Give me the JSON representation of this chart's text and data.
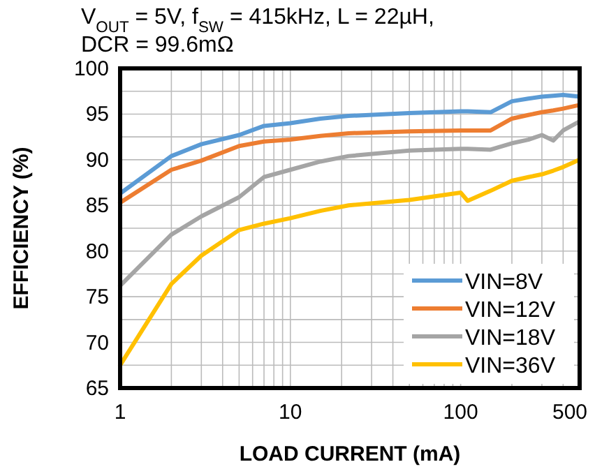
{
  "chart_data": {
    "type": "line",
    "title": "V$_{OUT}$ = 5V, f$_{SW}$ = 415kHz, L = 22µH, DCR = 99.6mΩ",
    "xlabel": "LOAD CURRENT (mA)",
    "ylabel": "EFFICIENCY (%)",
    "log": "x",
    "grid": true,
    "legend": "bottom right",
    "marker": "none",
    "line_style": "solid",
    "xlim": [
      1,
      500
    ],
    "ylim": [
      65,
      100
    ],
    "xticks": [
      1,
      {
        "value": 2,
        "label": null
      },
      {
        "value": 3,
        "label": null
      },
      {
        "value": 4,
        "label": null
      },
      {
        "value": 5,
        "label": null
      },
      {
        "value": 6,
        "label": null
      },
      {
        "value": 7,
        "label": null
      },
      {
        "value": 8,
        "label": null
      },
      {
        "value": 9,
        "label": null
      },
      10,
      {
        "value": 20,
        "label": null
      },
      {
        "value": 30,
        "label": null
      },
      {
        "value": 40,
        "label": null
      },
      {
        "value": 50,
        "label": null
      },
      {
        "value": 60,
        "label": null
      },
      {
        "value": 70,
        "label": null
      },
      {
        "value": 80,
        "label": null
      },
      {
        "value": 90,
        "label": null
      },
      100,
      {
        "value": 200,
        "label": null
      },
      {
        "value": 300,
        "label": null
      },
      {
        "value": 400,
        "label": null
      },
      500
    ],
    "yticks": [
      65,
      {
        "value": 67.5,
        "label": null
      },
      70,
      {
        "value": 72.5,
        "label": null
      },
      75,
      {
        "value": 77.5,
        "label": null
      },
      80,
      {
        "value": 82.5,
        "label": null
      },
      85,
      {
        "value": 87.5,
        "label": null
      },
      90,
      {
        "value": 92.5,
        "label": null
      },
      95,
      {
        "value": 97.5,
        "label": null
      },
      100
    ],
    "x": [
      1,
      2,
      3,
      5,
      7,
      10,
      15,
      22,
      50,
      100,
      110,
      150,
      200,
      250,
      300,
      350,
      400,
      500
    ],
    "series": [
      {
        "name": "VIN=8V",
        "color": "#5b9bd5",
        "values": [
          86.3,
          90.4,
          91.7,
          92.7,
          93.7,
          94.0,
          94.5,
          94.8,
          95.1,
          95.3,
          95.3,
          95.2,
          96.4,
          96.7,
          96.9,
          97.0,
          97.1,
          96.9
        ]
      },
      {
        "name": "VIN=12V",
        "color": "#ed7d31",
        "values": [
          85.3,
          88.9,
          89.9,
          91.5,
          92.0,
          92.2,
          92.6,
          92.9,
          93.1,
          93.2,
          93.2,
          93.2,
          94.5,
          94.9,
          95.2,
          95.4,
          95.6,
          96.0
        ]
      },
      {
        "name": "VIN=18V",
        "color": "#a5a5a5",
        "values": [
          76.2,
          81.8,
          83.8,
          85.9,
          88.1,
          88.9,
          89.8,
          90.4,
          91.0,
          91.2,
          91.2,
          91.1,
          91.8,
          92.2,
          92.7,
          92.1,
          93.2,
          94.2
        ]
      },
      {
        "name": "VIN=36V",
        "color": "#ffc000",
        "values": [
          67.5,
          76.4,
          79.5,
          82.3,
          83.0,
          83.6,
          84.4,
          85.0,
          85.6,
          86.4,
          85.5,
          86.6,
          87.7,
          88.1,
          88.4,
          88.8,
          89.2,
          90.0
        ]
      }
    ]
  }
}
